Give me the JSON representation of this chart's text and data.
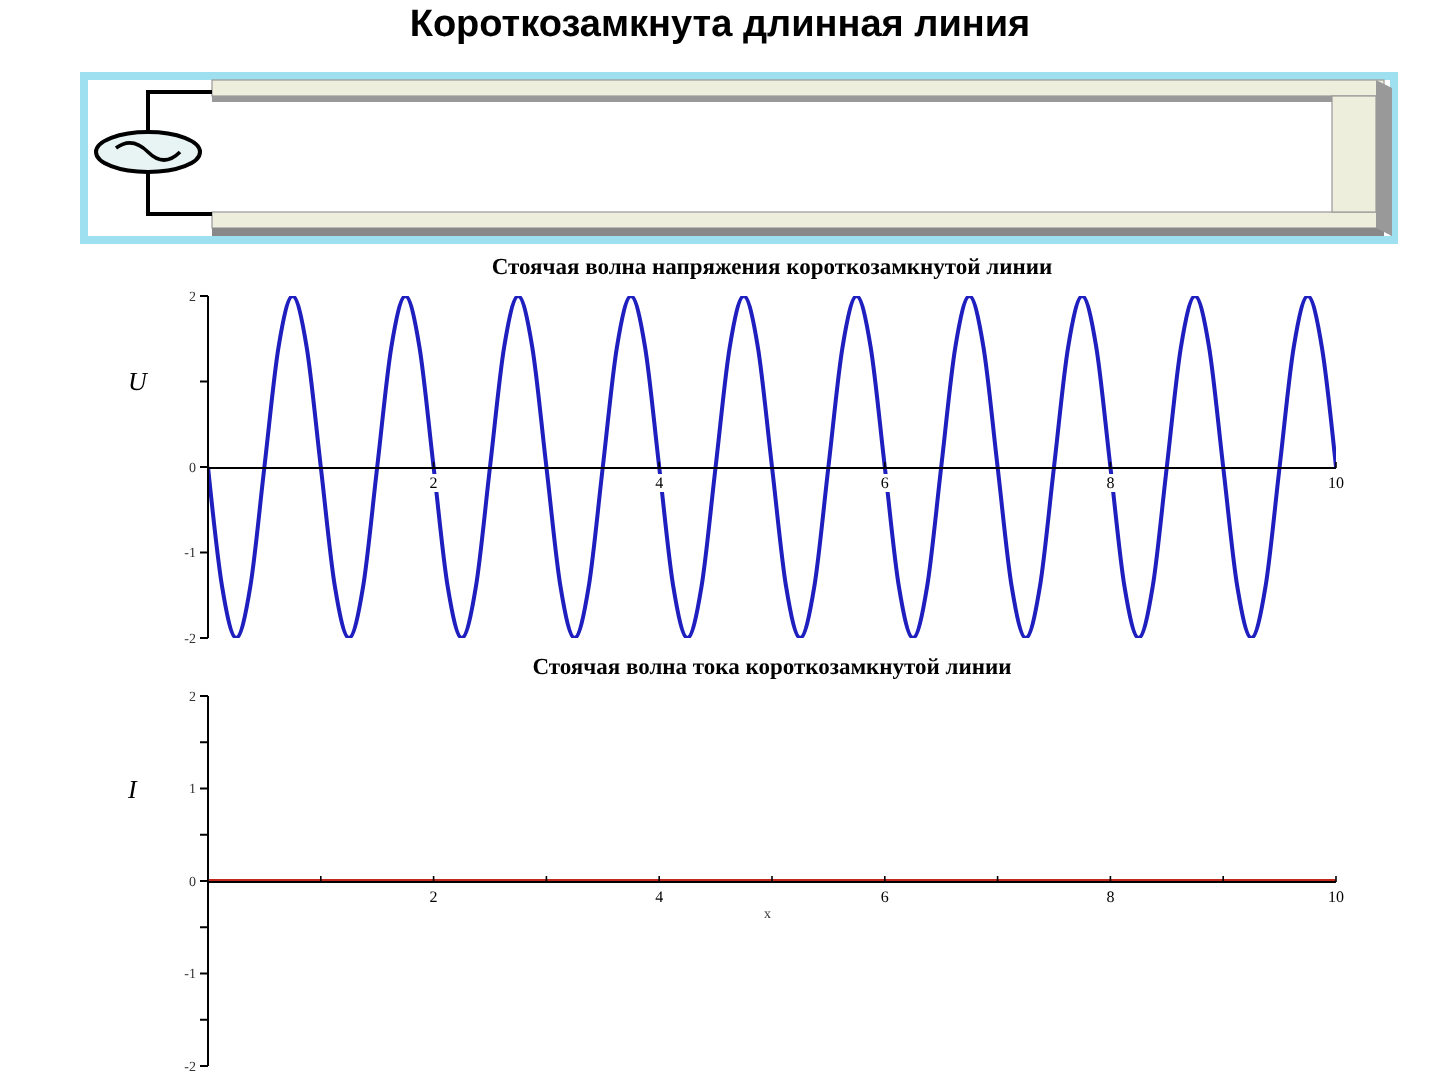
{
  "chart_data": [
    {
      "type": "other",
      "title": "Короткозамкнута длинная линия"
    },
    {
      "type": "line",
      "title": "Стоячая волна напряжения короткозамкнутой линии",
      "ylabel": "U",
      "color": "#1f1fbf",
      "xlim": [
        0,
        10
      ],
      "xticks": [
        2,
        4,
        6,
        8,
        10
      ],
      "ylim": [
        -2,
        2
      ],
      "yticks": [
        -2,
        -1,
        0,
        {
          "value": 1,
          "label": null
        },
        2
      ],
      "x": [
        0,
        0.125,
        0.25,
        0.375,
        0.5,
        0.625,
        0.75,
        0.875,
        1,
        1.125,
        1.25,
        1.375,
        1.5,
        1.625,
        1.75,
        1.875,
        2,
        2.125,
        2.25,
        2.375,
        2.5,
        2.625,
        2.75,
        2.875,
        3,
        3.125,
        3.25,
        3.375,
        3.5,
        3.625,
        3.75,
        3.875,
        4,
        4.125,
        4.25,
        4.375,
        4.5,
        4.625,
        4.75,
        4.875,
        5,
        5.125,
        5.25,
        5.375,
        5.5,
        5.625,
        5.75,
        5.875,
        6,
        6.125,
        6.25,
        6.375,
        6.5,
        6.625,
        6.75,
        6.875,
        7,
        7.125,
        7.25,
        7.375,
        7.5,
        7.625,
        7.75,
        7.875,
        8,
        8.125,
        8.25,
        8.375,
        8.5,
        8.625,
        8.75,
        8.875,
        9,
        9.125,
        9.25,
        9.375,
        9.5,
        9.625,
        9.75,
        9.875,
        10
      ],
      "values": [
        0,
        -1.4,
        -2,
        -1.4,
        0,
        1.4,
        2,
        1.4,
        0,
        -1.4,
        -2,
        -1.4,
        0,
        1.4,
        2,
        1.4,
        0,
        -1.4,
        -2,
        -1.4,
        0,
        1.4,
        2,
        1.4,
        0,
        -1.4,
        -2,
        -1.4,
        0,
        1.4,
        2,
        1.4,
        0,
        -1.4,
        -2,
        -1.4,
        0,
        1.4,
        2,
        1.4,
        0,
        -1.4,
        -2,
        -1.4,
        0,
        1.4,
        2,
        1.4,
        0,
        -1.4,
        -2,
        -1.4,
        0,
        1.4,
        2,
        1.4,
        0,
        -1.4,
        -2,
        -1.4,
        0,
        1.4,
        2,
        1.4,
        0,
        -1.4,
        -2,
        -1.4,
        0,
        1.4,
        2,
        1.4,
        0,
        -1.4,
        -2,
        -1.4,
        0,
        1.4,
        2,
        1.4,
        0
      ]
    },
    {
      "type": "line",
      "title": "Стоячая волна тока короткозамкнутой линии",
      "xlabel": "x",
      "ylabel": "I",
      "color": "#c0291b",
      "xlim": [
        0,
        10
      ],
      "xticks": [
        {
          "value": 1,
          "label": null
        },
        2,
        {
          "value": 3,
          "label": null
        },
        4,
        {
          "value": 5,
          "label": null
        },
        6,
        {
          "value": 7,
          "label": null
        },
        8,
        {
          "value": 9,
          "label": null
        },
        10
      ],
      "ylim": [
        -2,
        2
      ],
      "yticks": [
        -2,
        {
          "value": -1.5,
          "label": null
        },
        -1,
        {
          "value": -0.5,
          "label": null
        },
        0,
        {
          "value": 0.5,
          "label": null
        },
        1,
        {
          "value": 1.5,
          "label": null
        },
        2
      ],
      "x": [
        0,
        10
      ],
      "values": [
        0,
        0
      ]
    }
  ]
}
